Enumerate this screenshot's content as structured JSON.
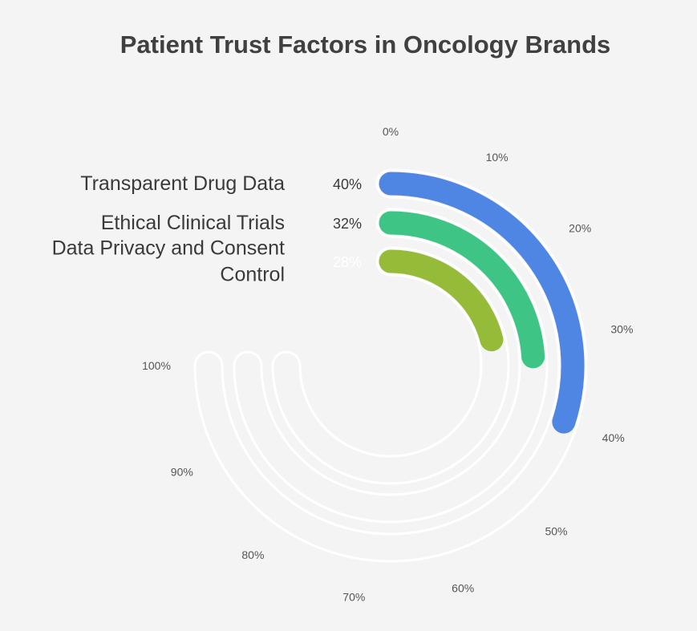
{
  "chart_data": {
    "type": "radial-bar",
    "title": "Patient Trust Factors in Oncology Brands",
    "categories": [
      {
        "lines": [
          "Transparent Drug Data"
        ],
        "value": 40,
        "value_label": "40%",
        "color": "#4f86e4",
        "value_label_color": "#3a3a3a"
      },
      {
        "lines": [
          "Ethical Clinical Trials"
        ],
        "value": 32,
        "value_label": "32%",
        "color": "#3ec585",
        "value_label_color": "#3a3a3a"
      },
      {
        "lines": [
          "Data Privacy and Consent",
          "Control"
        ],
        "value": 28,
        "value_label": "28%",
        "color": "#95bb38",
        "value_label_color": "#ffffff"
      }
    ],
    "axis_ticks": [
      "0%",
      "10%",
      "20%",
      "30%",
      "40%",
      "50%",
      "60%",
      "70%",
      "80%",
      "90%",
      "100%"
    ],
    "range": [
      0,
      100
    ],
    "track_color": "#ffffff"
  }
}
